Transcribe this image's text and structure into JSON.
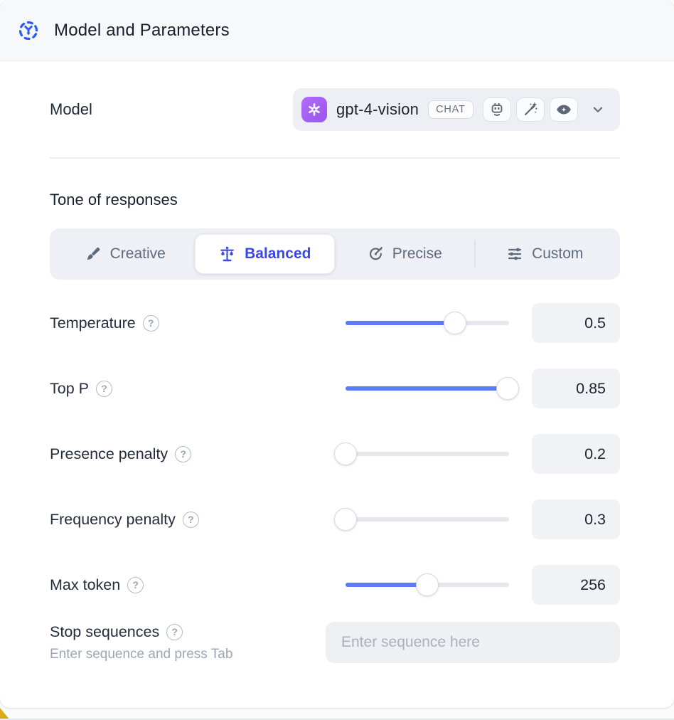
{
  "header": {
    "title": "Model and Parameters",
    "icon": "model-dashed-circle-icon",
    "icon_color": "#2b5bf3"
  },
  "model": {
    "label": "Model",
    "selected_model": "gpt-4-vision",
    "type_badge": "CHAT",
    "provider_logo": "openai-logo",
    "provider_color": "#a45ef5",
    "capability_icons": [
      "robot-icon",
      "magic-wand-icon",
      "vision-eye-icon"
    ]
  },
  "tone": {
    "heading": "Tone of responses",
    "selected_color": "#3d47e1",
    "tabs": [
      {
        "label": "Creative",
        "icon": "paintbrush-icon",
        "selected": false
      },
      {
        "label": "Balanced",
        "icon": "balance-scale-icon",
        "selected": true
      },
      {
        "label": "Precise",
        "icon": "target-icon",
        "selected": false
      },
      {
        "label": "Custom",
        "icon": "sliders-icon",
        "selected": false
      }
    ]
  },
  "params": {
    "slider_color": "#5b7bf8",
    "rows": [
      {
        "label": "Temperature",
        "value": "0.5",
        "fill_pct": 67
      },
      {
        "label": "Top P",
        "value": "0.85",
        "fill_pct": 99
      },
      {
        "label": "Presence penalty",
        "value": "0.2",
        "fill_pct": 0
      },
      {
        "label": "Frequency penalty",
        "value": "0.3",
        "fill_pct": 0
      },
      {
        "label": "Max token",
        "value": "256",
        "fill_pct": 50
      }
    ]
  },
  "stop": {
    "label": "Stop sequences",
    "helper": "Enter sequence and press Tab",
    "placeholder": "Enter sequence here"
  },
  "help_glyph": "?"
}
